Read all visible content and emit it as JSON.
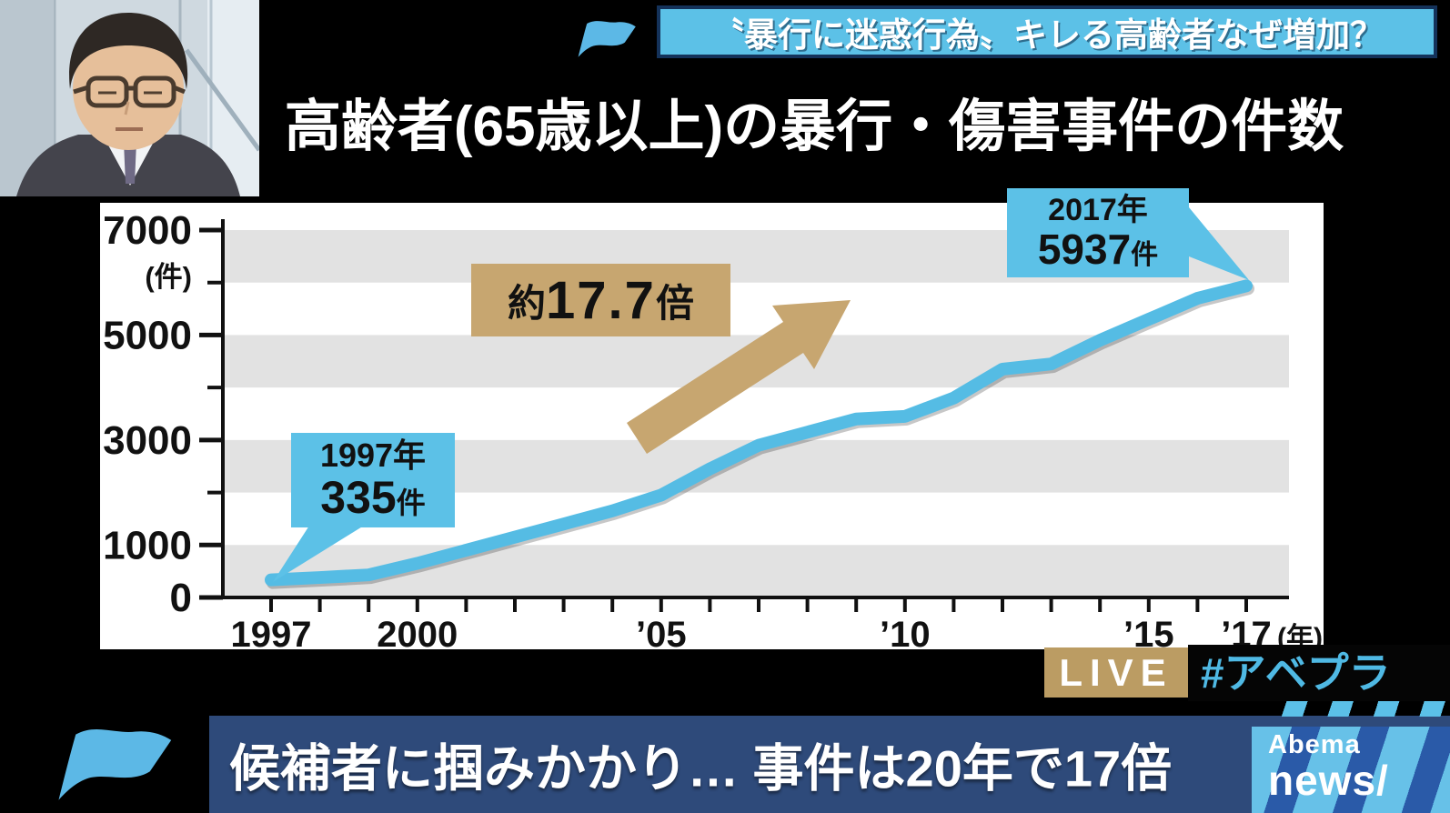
{
  "colors": {
    "light_blue": "#5cc1e7",
    "line_blue": "#55bce4",
    "banner_border_navy": "#14325a",
    "bottom_banner_navy": "#2e4a7a",
    "tan": "#c7a670",
    "live_tan": "#bb9c63",
    "stripe_gray": "#e2e2e2",
    "hashtag_blue": "#4fb9e4"
  },
  "top_banner": {
    "text": "〝暴行に迷惑行為〟キレる高齢者なぜ増加？"
  },
  "title": "高齢者(65歳以上)の暴行・傷害事件の件数",
  "chart_data": {
    "type": "line",
    "title": "高齢者(65歳以上)の暴行・傷害事件の件数",
    "ylabel": "(件)",
    "xlabel": "(年)",
    "ylim": [
      0,
      7000
    ],
    "grid": "alternating horizontal gray bands every 1000",
    "legend": "none",
    "years": [
      1997,
      1998,
      1999,
      2000,
      2001,
      2002,
      2003,
      2004,
      2005,
      2006,
      2007,
      2008,
      2009,
      2010,
      2011,
      2012,
      2013,
      2014,
      2015,
      2016,
      2017
    ],
    "values": [
      335,
      380,
      430,
      650,
      900,
      1150,
      1400,
      1650,
      1950,
      2450,
      2900,
      3150,
      3400,
      3450,
      3800,
      4350,
      4450,
      4900,
      5300,
      5700,
      5937
    ],
    "yticks": [
      {
        "value": 7000,
        "label": "7000"
      },
      {
        "value": 5000,
        "label": "5000"
      },
      {
        "value": 3000,
        "label": "3000"
      },
      {
        "value": 1000,
        "label": "1000"
      },
      {
        "value": 0,
        "label": "0"
      }
    ],
    "xticks": [
      {
        "year": 1997,
        "label": "1997"
      },
      {
        "year": 2000,
        "label": "2000"
      },
      {
        "year": 2005,
        "label": "’05"
      },
      {
        "year": 2010,
        "label": "’10"
      },
      {
        "year": 2015,
        "label": "’15"
      },
      {
        "year": 2017,
        "label": "’17"
      }
    ]
  },
  "callout_start": {
    "year_label": "1997年",
    "value": "335",
    "unit": "件"
  },
  "callout_end": {
    "year_label": "2017年",
    "value": "5937",
    "unit": "件"
  },
  "multiplier": {
    "prefix": "約",
    "value": "17.7",
    "suffix": "倍"
  },
  "live_badge": "LIVE",
  "hashtag": "#アベプラ",
  "bottom_banner": {
    "text": "候補者に掴みかかり… 事件は20年で17倍"
  },
  "logo": {
    "line1": "Abema",
    "line2": "news/"
  }
}
